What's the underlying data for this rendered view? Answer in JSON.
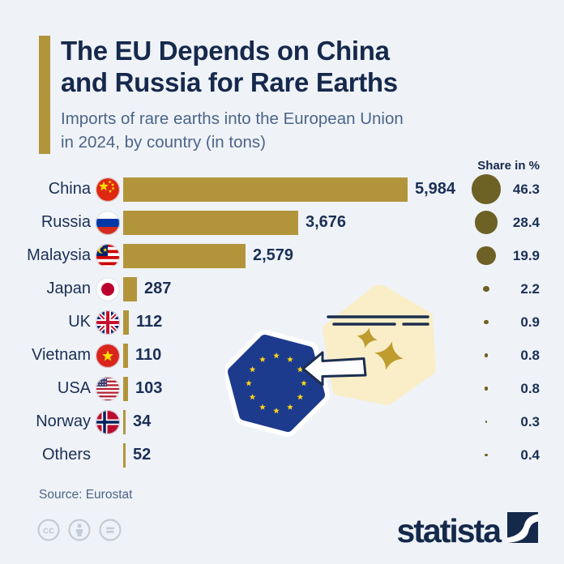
{
  "header": {
    "title_lines": [
      "The EU Depends on China",
      "and Russia for Rare Earths"
    ],
    "subtitle_lines": [
      "Imports of rare earths into the European Union",
      "in 2024, by country (in tons)"
    ],
    "accent_color": "#b2953b"
  },
  "chart_data": {
    "type": "bar",
    "orientation": "horizontal",
    "unit": "tons",
    "share_column_header": "Share in %",
    "max_value": 5984,
    "bar_color": "#b2953b",
    "share_dot_color": "#6e6125",
    "rows": [
      {
        "country": "China",
        "flag": "china",
        "value": 5984,
        "value_label": "5,984",
        "share": 46.3,
        "share_label": "46.3"
      },
      {
        "country": "Russia",
        "flag": "russia",
        "value": 3676,
        "value_label": "3,676",
        "share": 28.4,
        "share_label": "28.4"
      },
      {
        "country": "Malaysia",
        "flag": "malaysia",
        "value": 2579,
        "value_label": "2,579",
        "share": 19.9,
        "share_label": "19.9"
      },
      {
        "country": "Japan",
        "flag": "japan",
        "value": 287,
        "value_label": "287",
        "share": 2.2,
        "share_label": "2.2"
      },
      {
        "country": "UK",
        "flag": "uk",
        "value": 112,
        "value_label": "112",
        "share": 0.9,
        "share_label": "0.9"
      },
      {
        "country": "Vietnam",
        "flag": "vietnam",
        "value": 110,
        "value_label": "110",
        "share": 0.8,
        "share_label": "0.8"
      },
      {
        "country": "USA",
        "flag": "usa",
        "value": 103,
        "value_label": "103",
        "share": 0.8,
        "share_label": "0.8"
      },
      {
        "country": "Norway",
        "flag": "norway",
        "value": 34,
        "value_label": "34",
        "share": 0.3,
        "share_label": "0.3"
      },
      {
        "country": "Others",
        "flag": null,
        "value": 52,
        "value_label": "52",
        "share": 0.4,
        "share_label": "0.4"
      }
    ]
  },
  "footer": {
    "source": "Source: Eurostat",
    "brand": "statista",
    "license_icons": [
      "cc-icon",
      "attribution-icon",
      "equals-icon"
    ]
  }
}
